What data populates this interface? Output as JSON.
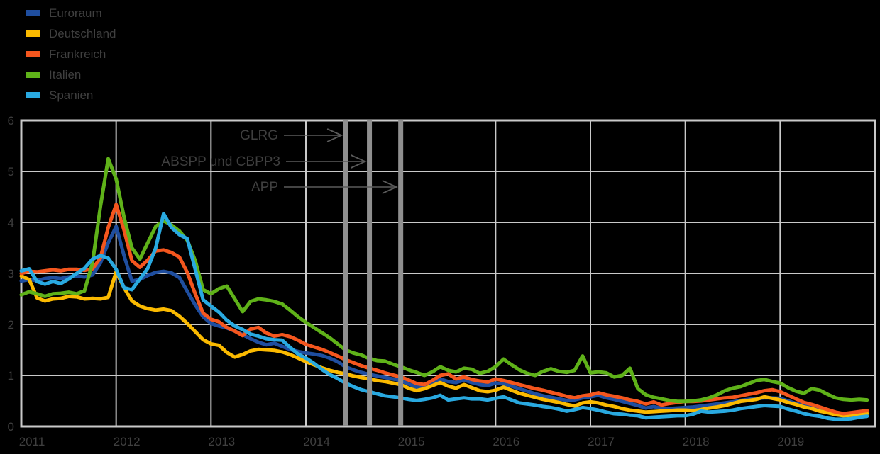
{
  "colors": {
    "background": "#000000",
    "grid": "#c9c9c9",
    "event_line": "#8f8f8f",
    "arrow": "#5a5a5a",
    "text": "#3f3f3f"
  },
  "chart_data": {
    "type": "line",
    "title": "",
    "xlabel": "",
    "ylabel": "",
    "x_axis": {
      "start_year": 2011,
      "end_year": 2020,
      "points_per_year": 12,
      "ticks": [
        "2011",
        "2012",
        "2013",
        "2014",
        "2015",
        "2016",
        "2017",
        "2018",
        "2019"
      ]
    },
    "y_axis": {
      "min": 0,
      "max": 6,
      "ticks": [
        "0",
        "1",
        "2",
        "3",
        "4",
        "5",
        "6"
      ]
    },
    "grid": true,
    "legend_position": "top-left",
    "series": [
      {
        "name": "Euroraum",
        "color": "#1f4e9f",
        "values": [
          2.85,
          2.88,
          2.86,
          2.9,
          2.92,
          2.9,
          2.93,
          2.95,
          2.93,
          2.97,
          3.2,
          3.6,
          3.92,
          3.35,
          2.85,
          2.88,
          2.96,
          3.02,
          3.04,
          3.01,
          2.92,
          2.65,
          2.38,
          2.15,
          2.02,
          1.97,
          1.93,
          1.87,
          1.8,
          1.72,
          1.65,
          1.6,
          1.63,
          1.57,
          1.51,
          1.47,
          1.44,
          1.42,
          1.39,
          1.34,
          1.27,
          1.17,
          1.11,
          1.06,
          1.02,
          0.99,
          0.96,
          0.93,
          0.9,
          0.83,
          0.77,
          0.81,
          0.87,
          0.93,
          0.88,
          0.86,
          0.91,
          0.86,
          0.82,
          0.8,
          0.85,
          0.83,
          0.79,
          0.74,
          0.69,
          0.64,
          0.6,
          0.57,
          0.54,
          0.51,
          0.52,
          0.56,
          0.58,
          0.61,
          0.56,
          0.53,
          0.49,
          0.45,
          0.41,
          0.36,
          0.39,
          0.35,
          0.35,
          0.36,
          0.37,
          0.38,
          0.4,
          0.42,
          0.44,
          0.46,
          0.48,
          0.51,
          0.53,
          0.54,
          0.56,
          0.56,
          0.55,
          0.5,
          0.45,
          0.41,
          0.37,
          0.33,
          0.29,
          0.25,
          0.23,
          0.25,
          0.27,
          0.28
        ]
      },
      {
        "name": "Deutschland",
        "color": "#fbba00",
        "values": [
          2.95,
          2.88,
          2.52,
          2.46,
          2.5,
          2.51,
          2.55,
          2.54,
          2.5,
          2.51,
          2.5,
          2.53,
          3.03,
          2.72,
          2.46,
          2.36,
          2.31,
          2.28,
          2.3,
          2.27,
          2.16,
          2.02,
          1.86,
          1.7,
          1.62,
          1.59,
          1.45,
          1.36,
          1.41,
          1.48,
          1.51,
          1.5,
          1.49,
          1.46,
          1.41,
          1.34,
          1.27,
          1.21,
          1.15,
          1.1,
          1.06,
          1.03,
          0.99,
          0.96,
          0.93,
          0.9,
          0.88,
          0.85,
          0.82,
          0.75,
          0.7,
          0.74,
          0.8,
          0.86,
          0.79,
          0.75,
          0.82,
          0.76,
          0.7,
          0.68,
          0.71,
          0.77,
          0.71,
          0.65,
          0.61,
          0.57,
          0.53,
          0.5,
          0.47,
          0.43,
          0.4,
          0.46,
          0.48,
          0.46,
          0.42,
          0.39,
          0.35,
          0.32,
          0.3,
          0.28,
          0.29,
          0.3,
          0.31,
          0.32,
          0.32,
          0.31,
          0.33,
          0.36,
          0.38,
          0.41,
          0.45,
          0.49,
          0.51,
          0.53,
          0.58,
          0.55,
          0.52,
          0.47,
          0.43,
          0.38,
          0.35,
          0.3,
          0.27,
          0.23,
          0.21,
          0.22,
          0.24,
          0.25
        ]
      },
      {
        "name": "Frankreich",
        "color": "#f4561e",
        "values": [
          3.0,
          3.04,
          3.03,
          3.05,
          3.07,
          3.05,
          3.08,
          3.08,
          3.06,
          3.09,
          3.3,
          3.9,
          4.35,
          3.85,
          3.25,
          3.12,
          3.26,
          3.44,
          3.46,
          3.41,
          3.32,
          3.02,
          2.6,
          2.22,
          2.1,
          2.05,
          1.94,
          1.87,
          1.78,
          1.91,
          1.94,
          1.83,
          1.77,
          1.8,
          1.76,
          1.69,
          1.61,
          1.56,
          1.51,
          1.45,
          1.38,
          1.31,
          1.25,
          1.19,
          1.14,
          1.1,
          1.05,
          1.01,
          0.97,
          0.91,
          0.84,
          0.82,
          0.9,
          1.0,
          1.03,
          0.93,
          0.97,
          0.92,
          0.89,
          0.87,
          0.93,
          0.9,
          0.86,
          0.82,
          0.78,
          0.74,
          0.71,
          0.67,
          0.63,
          0.59,
          0.56,
          0.6,
          0.62,
          0.66,
          0.62,
          0.59,
          0.56,
          0.52,
          0.49,
          0.44,
          0.48,
          0.42,
          0.45,
          0.47,
          0.49,
          0.49,
          0.5,
          0.52,
          0.54,
          0.56,
          0.57,
          0.6,
          0.63,
          0.66,
          0.7,
          0.72,
          0.68,
          0.61,
          0.54,
          0.47,
          0.43,
          0.38,
          0.33,
          0.28,
          0.25,
          0.27,
          0.29,
          0.31
        ]
      },
      {
        "name": "Italien",
        "color": "#5fb219",
        "values": [
          2.58,
          2.64,
          2.6,
          2.55,
          2.6,
          2.61,
          2.63,
          2.6,
          2.66,
          3.2,
          4.3,
          5.25,
          4.85,
          4.1,
          3.5,
          3.28,
          3.6,
          3.92,
          4.03,
          3.95,
          3.83,
          3.65,
          3.25,
          2.68,
          2.6,
          2.7,
          2.75,
          2.5,
          2.25,
          2.45,
          2.5,
          2.48,
          2.45,
          2.4,
          2.28,
          2.15,
          2.04,
          1.94,
          1.84,
          1.74,
          1.62,
          1.5,
          1.44,
          1.4,
          1.33,
          1.29,
          1.28,
          1.22,
          1.17,
          1.11,
          1.06,
          1.0,
          1.07,
          1.17,
          1.1,
          1.07,
          1.14,
          1.12,
          1.04,
          1.08,
          1.17,
          1.32,
          1.21,
          1.11,
          1.04,
          1.0,
          1.08,
          1.13,
          1.08,
          1.06,
          1.1,
          1.38,
          1.05,
          1.07,
          1.05,
          0.97,
          1.0,
          1.14,
          0.74,
          0.62,
          0.57,
          0.54,
          0.51,
          0.49,
          0.49,
          0.5,
          0.52,
          0.56,
          0.62,
          0.7,
          0.75,
          0.78,
          0.84,
          0.9,
          0.92,
          0.88,
          0.85,
          0.76,
          0.69,
          0.65,
          0.74,
          0.71,
          0.63,
          0.56,
          0.53,
          0.52,
          0.53,
          0.52
        ]
      },
      {
        "name": "Spanien",
        "color": "#29a9e0",
        "values": [
          3.05,
          3.09,
          2.84,
          2.79,
          2.84,
          2.8,
          2.89,
          3.0,
          3.1,
          3.28,
          3.35,
          3.3,
          3.08,
          2.72,
          2.68,
          2.89,
          3.1,
          3.5,
          4.17,
          3.9,
          3.76,
          3.68,
          3.08,
          2.48,
          2.36,
          2.24,
          2.08,
          1.97,
          1.9,
          1.81,
          1.77,
          1.72,
          1.7,
          1.69,
          1.55,
          1.42,
          1.34,
          1.24,
          1.12,
          1.02,
          0.94,
          0.85,
          0.78,
          0.72,
          0.68,
          0.64,
          0.6,
          0.58,
          0.56,
          0.53,
          0.51,
          0.53,
          0.56,
          0.61,
          0.52,
          0.54,
          0.56,
          0.54,
          0.54,
          0.52,
          0.55,
          0.58,
          0.52,
          0.46,
          0.44,
          0.42,
          0.39,
          0.37,
          0.34,
          0.3,
          0.33,
          0.37,
          0.35,
          0.32,
          0.28,
          0.25,
          0.24,
          0.22,
          0.21,
          0.17,
          0.18,
          0.19,
          0.2,
          0.21,
          0.21,
          0.24,
          0.3,
          0.28,
          0.29,
          0.3,
          0.32,
          0.35,
          0.37,
          0.39,
          0.41,
          0.4,
          0.39,
          0.34,
          0.3,
          0.25,
          0.22,
          0.2,
          0.16,
          0.14,
          0.14,
          0.15,
          0.18,
          0.2
        ]
      }
    ],
    "event_lines": [
      {
        "label": "GLRG",
        "x_year": 2014.42
      },
      {
        "label": "ABSPP und CBPP3",
        "x_year": 2014.67
      },
      {
        "label": "APP",
        "x_year": 2015.0
      }
    ],
    "annotations": [
      {
        "label": "GLRG",
        "text_right_x": 392,
        "arrow_y": 191,
        "arrow_start_x": 400,
        "event_index": 0
      },
      {
        "label": "ABSPP und CBPP3",
        "text_right_x": 395,
        "arrow_y": 228,
        "arrow_start_x": 403,
        "event_index": 1
      },
      {
        "label": "APP",
        "text_right_x": 392,
        "arrow_y": 264,
        "arrow_start_x": 400,
        "event_index": 2
      }
    ]
  }
}
